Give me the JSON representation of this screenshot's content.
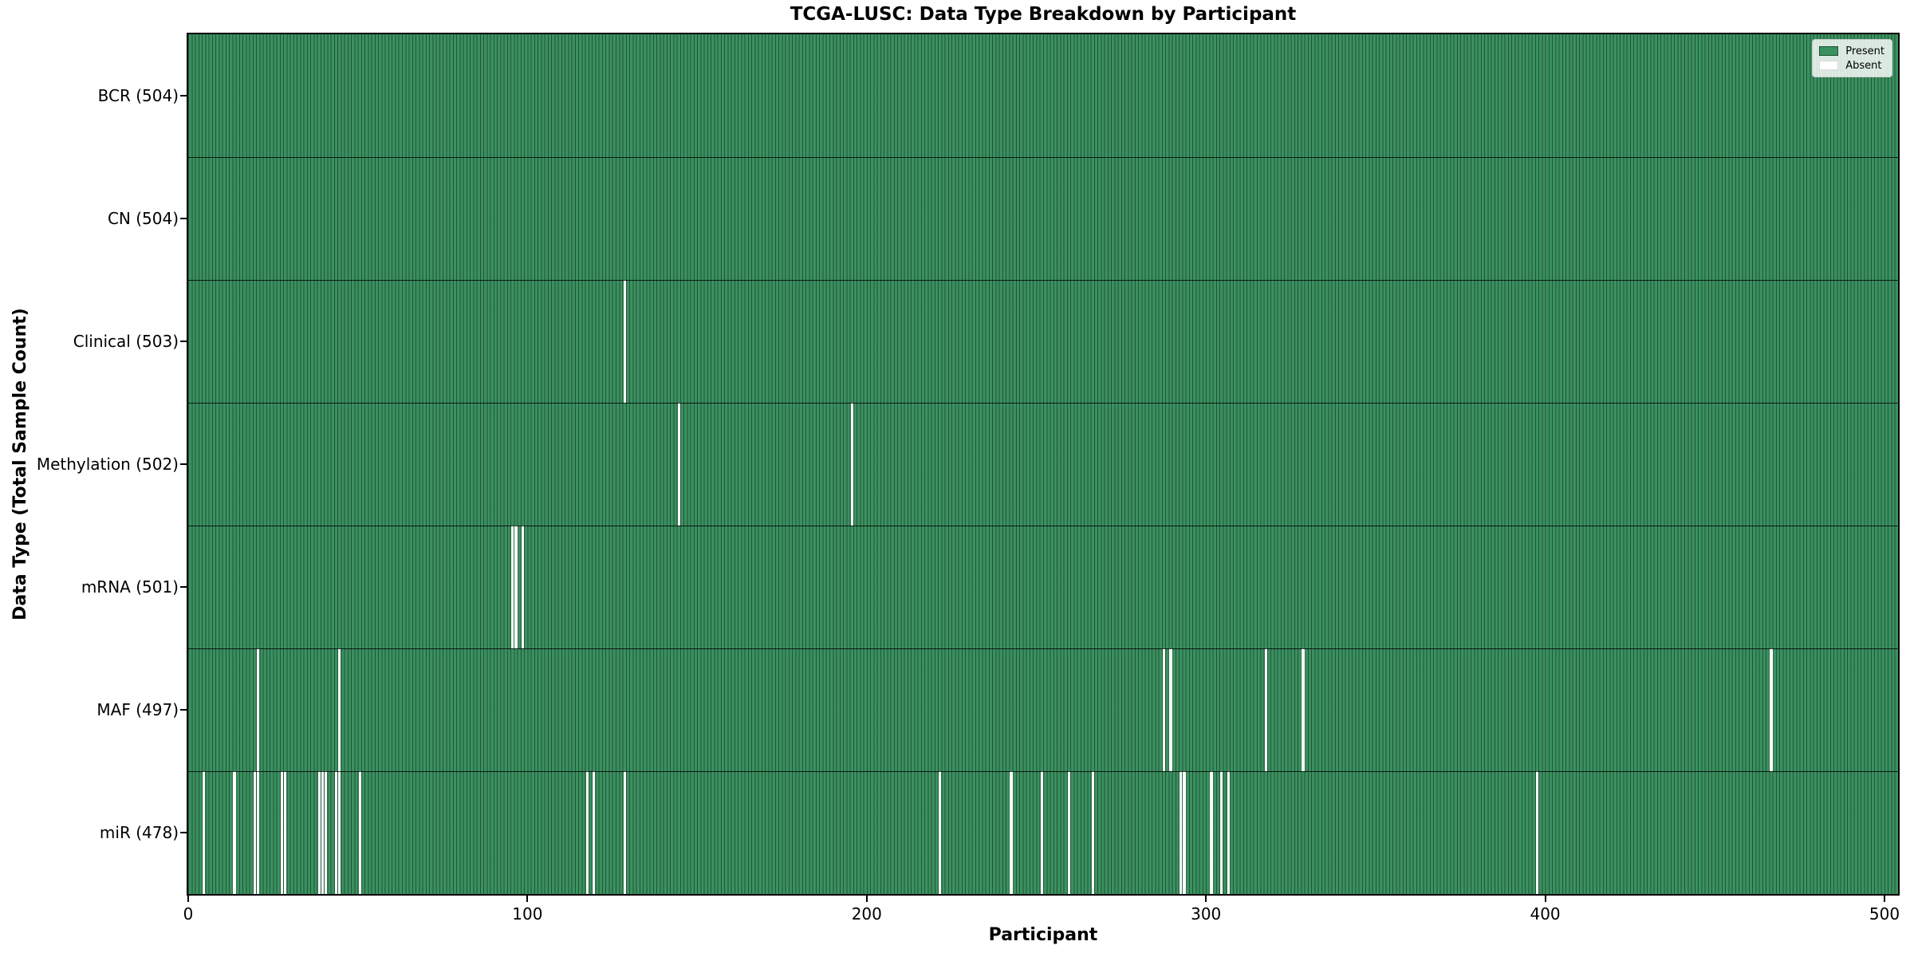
{
  "chart_data": {
    "type": "heatmap",
    "title": "TCGA-LUSC: Data Type Breakdown by Participant",
    "xlabel": "Participant",
    "ylabel": "Data Type (Total Sample Count)",
    "x_ticks": [
      0,
      100,
      200,
      300,
      400,
      500
    ],
    "x_range": [
      0,
      504
    ],
    "total_participants": 504,
    "grid": false,
    "legend_position": "upper right",
    "legend": [
      {
        "label": "Present",
        "color": "#3a9160"
      },
      {
        "label": "Absent",
        "color": "#ffffff"
      }
    ],
    "colors": {
      "present": "#3a9160",
      "absent": "#ffffff",
      "cell_edge": "rgba(0,0,0,0.42)",
      "row_divider": "rgba(0,0,0,0.8)",
      "spine": "#000000"
    },
    "rows": [
      {
        "data_type": "BCR",
        "label": "BCR (504)",
        "present_count": 504,
        "absent_count": 0,
        "absent_participants": []
      },
      {
        "data_type": "CN",
        "label": "CN (504)",
        "present_count": 504,
        "absent_count": 0,
        "absent_participants": []
      },
      {
        "data_type": "Clinical",
        "label": "Clinical (503)",
        "present_count": 503,
        "absent_count": 1,
        "absent_participants": [
          128
        ]
      },
      {
        "data_type": "Methylation",
        "label": "Methylation (502)",
        "present_count": 502,
        "absent_count": 2,
        "absent_participants": [
          144,
          195
        ]
      },
      {
        "data_type": "mRNA",
        "label": "mRNA (501)",
        "present_count": 501,
        "absent_count": 3,
        "absent_participants": [
          95,
          96,
          98
        ]
      },
      {
        "data_type": "MAF",
        "label": "MAF (497)",
        "present_count": 497,
        "absent_count": 7,
        "absent_participants": [
          20,
          44,
          287,
          289,
          317,
          328,
          466
        ]
      },
      {
        "data_type": "miR",
        "label": "miR (478)",
        "present_count": 478,
        "absent_count": 26,
        "absent_participants": [
          4,
          13,
          19,
          20,
          27,
          28,
          38,
          39,
          40,
          43,
          44,
          50,
          117,
          119,
          128,
          221,
          242,
          251,
          259,
          266,
          292,
          293,
          301,
          304,
          306,
          397
        ]
      }
    ]
  }
}
